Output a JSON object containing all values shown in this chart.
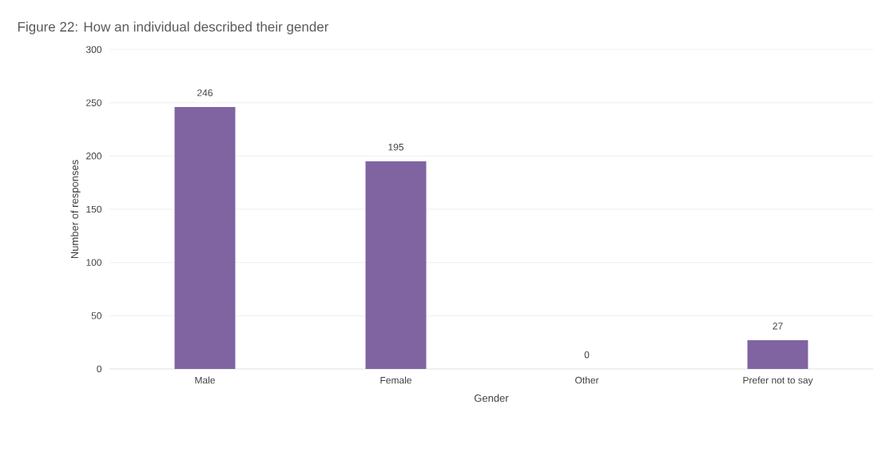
{
  "chart_data": {
    "type": "bar",
    "title": "Figure 22: How an individual described their gender",
    "xlabel": "Gender",
    "ylabel": "Number of responses",
    "categories": [
      "Male",
      "Female",
      "Other",
      "Prefer not to say"
    ],
    "values": [
      246,
      195,
      0,
      27
    ],
    "color": "#8064a2",
    "ylim": [
      0,
      300
    ],
    "yticks": [
      0,
      50,
      100,
      150,
      200,
      250,
      300
    ],
    "grid": "y",
    "data_labels": true
  }
}
